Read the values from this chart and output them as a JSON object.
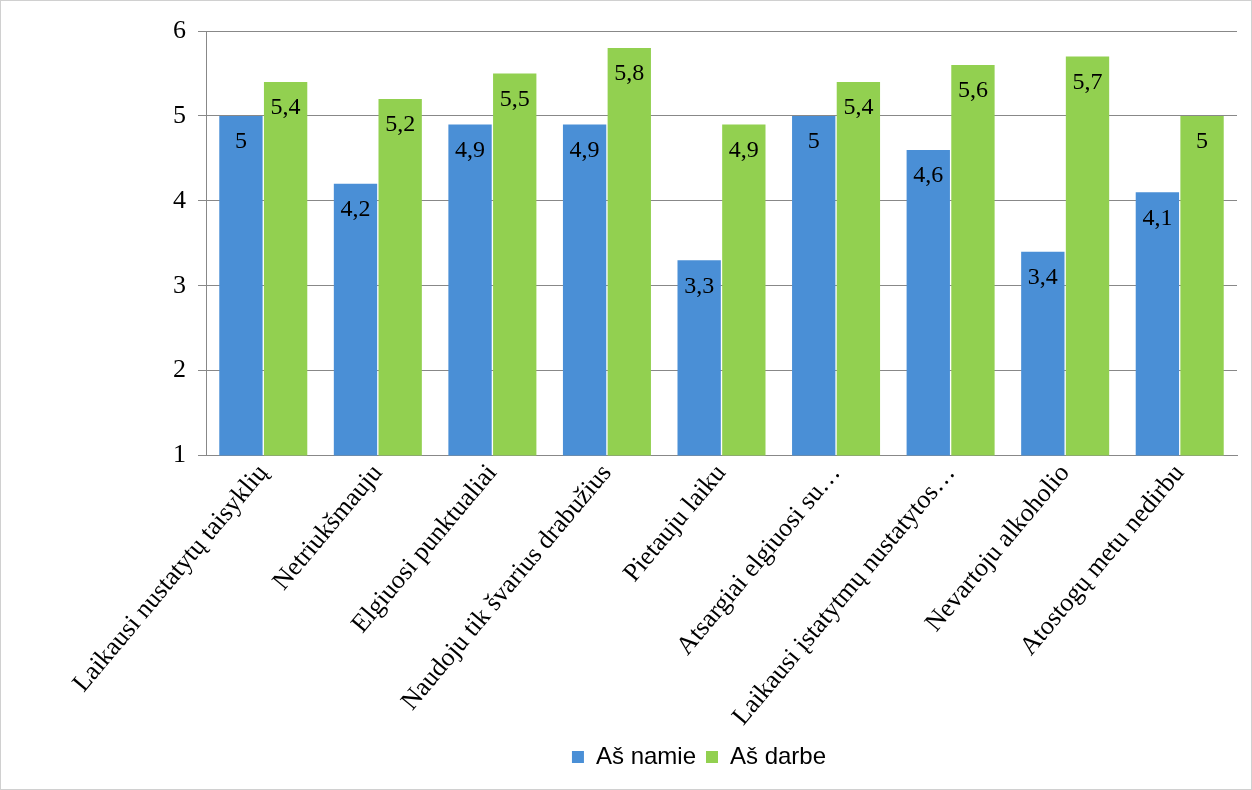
{
  "chart_data": {
    "type": "bar",
    "categories": [
      "Laikausi nustatytų taisyklių",
      "Netriukšmauju",
      "Elgiuosi punktualiai",
      "Naudoju tik švarius drabužius",
      "Pietauju laiku",
      "Atsargiai elgiuosi su…",
      "Laikausi įstatytmų nustatytos…",
      "Nevartoju alkoholio",
      "Atostogų metu nedirbu"
    ],
    "series": [
      {
        "name": "Aš namie",
        "color": "#4a8fd6",
        "values": [
          5,
          4.2,
          4.9,
          4.9,
          3.3,
          5,
          4.6,
          3.4,
          4.1
        ],
        "value_labels": [
          "5",
          "4,2",
          "4,9",
          "4,9",
          "3,3",
          "5",
          "4,6",
          "3,4",
          "4,1"
        ]
      },
      {
        "name": "Aš darbe",
        "color": "#92d050",
        "values": [
          5.4,
          5.2,
          5.5,
          5.8,
          4.9,
          5.4,
          5.6,
          5.7,
          5
        ],
        "value_labels": [
          "5,4",
          "5,2",
          "5,5",
          "5,8",
          "4,9",
          "5,4",
          "5,6",
          "5,7",
          "5"
        ]
      }
    ],
    "ylim": [
      1,
      6
    ],
    "yticks": [
      1,
      2,
      3,
      4,
      5,
      6
    ],
    "grid": "y",
    "legend": "bottom"
  }
}
